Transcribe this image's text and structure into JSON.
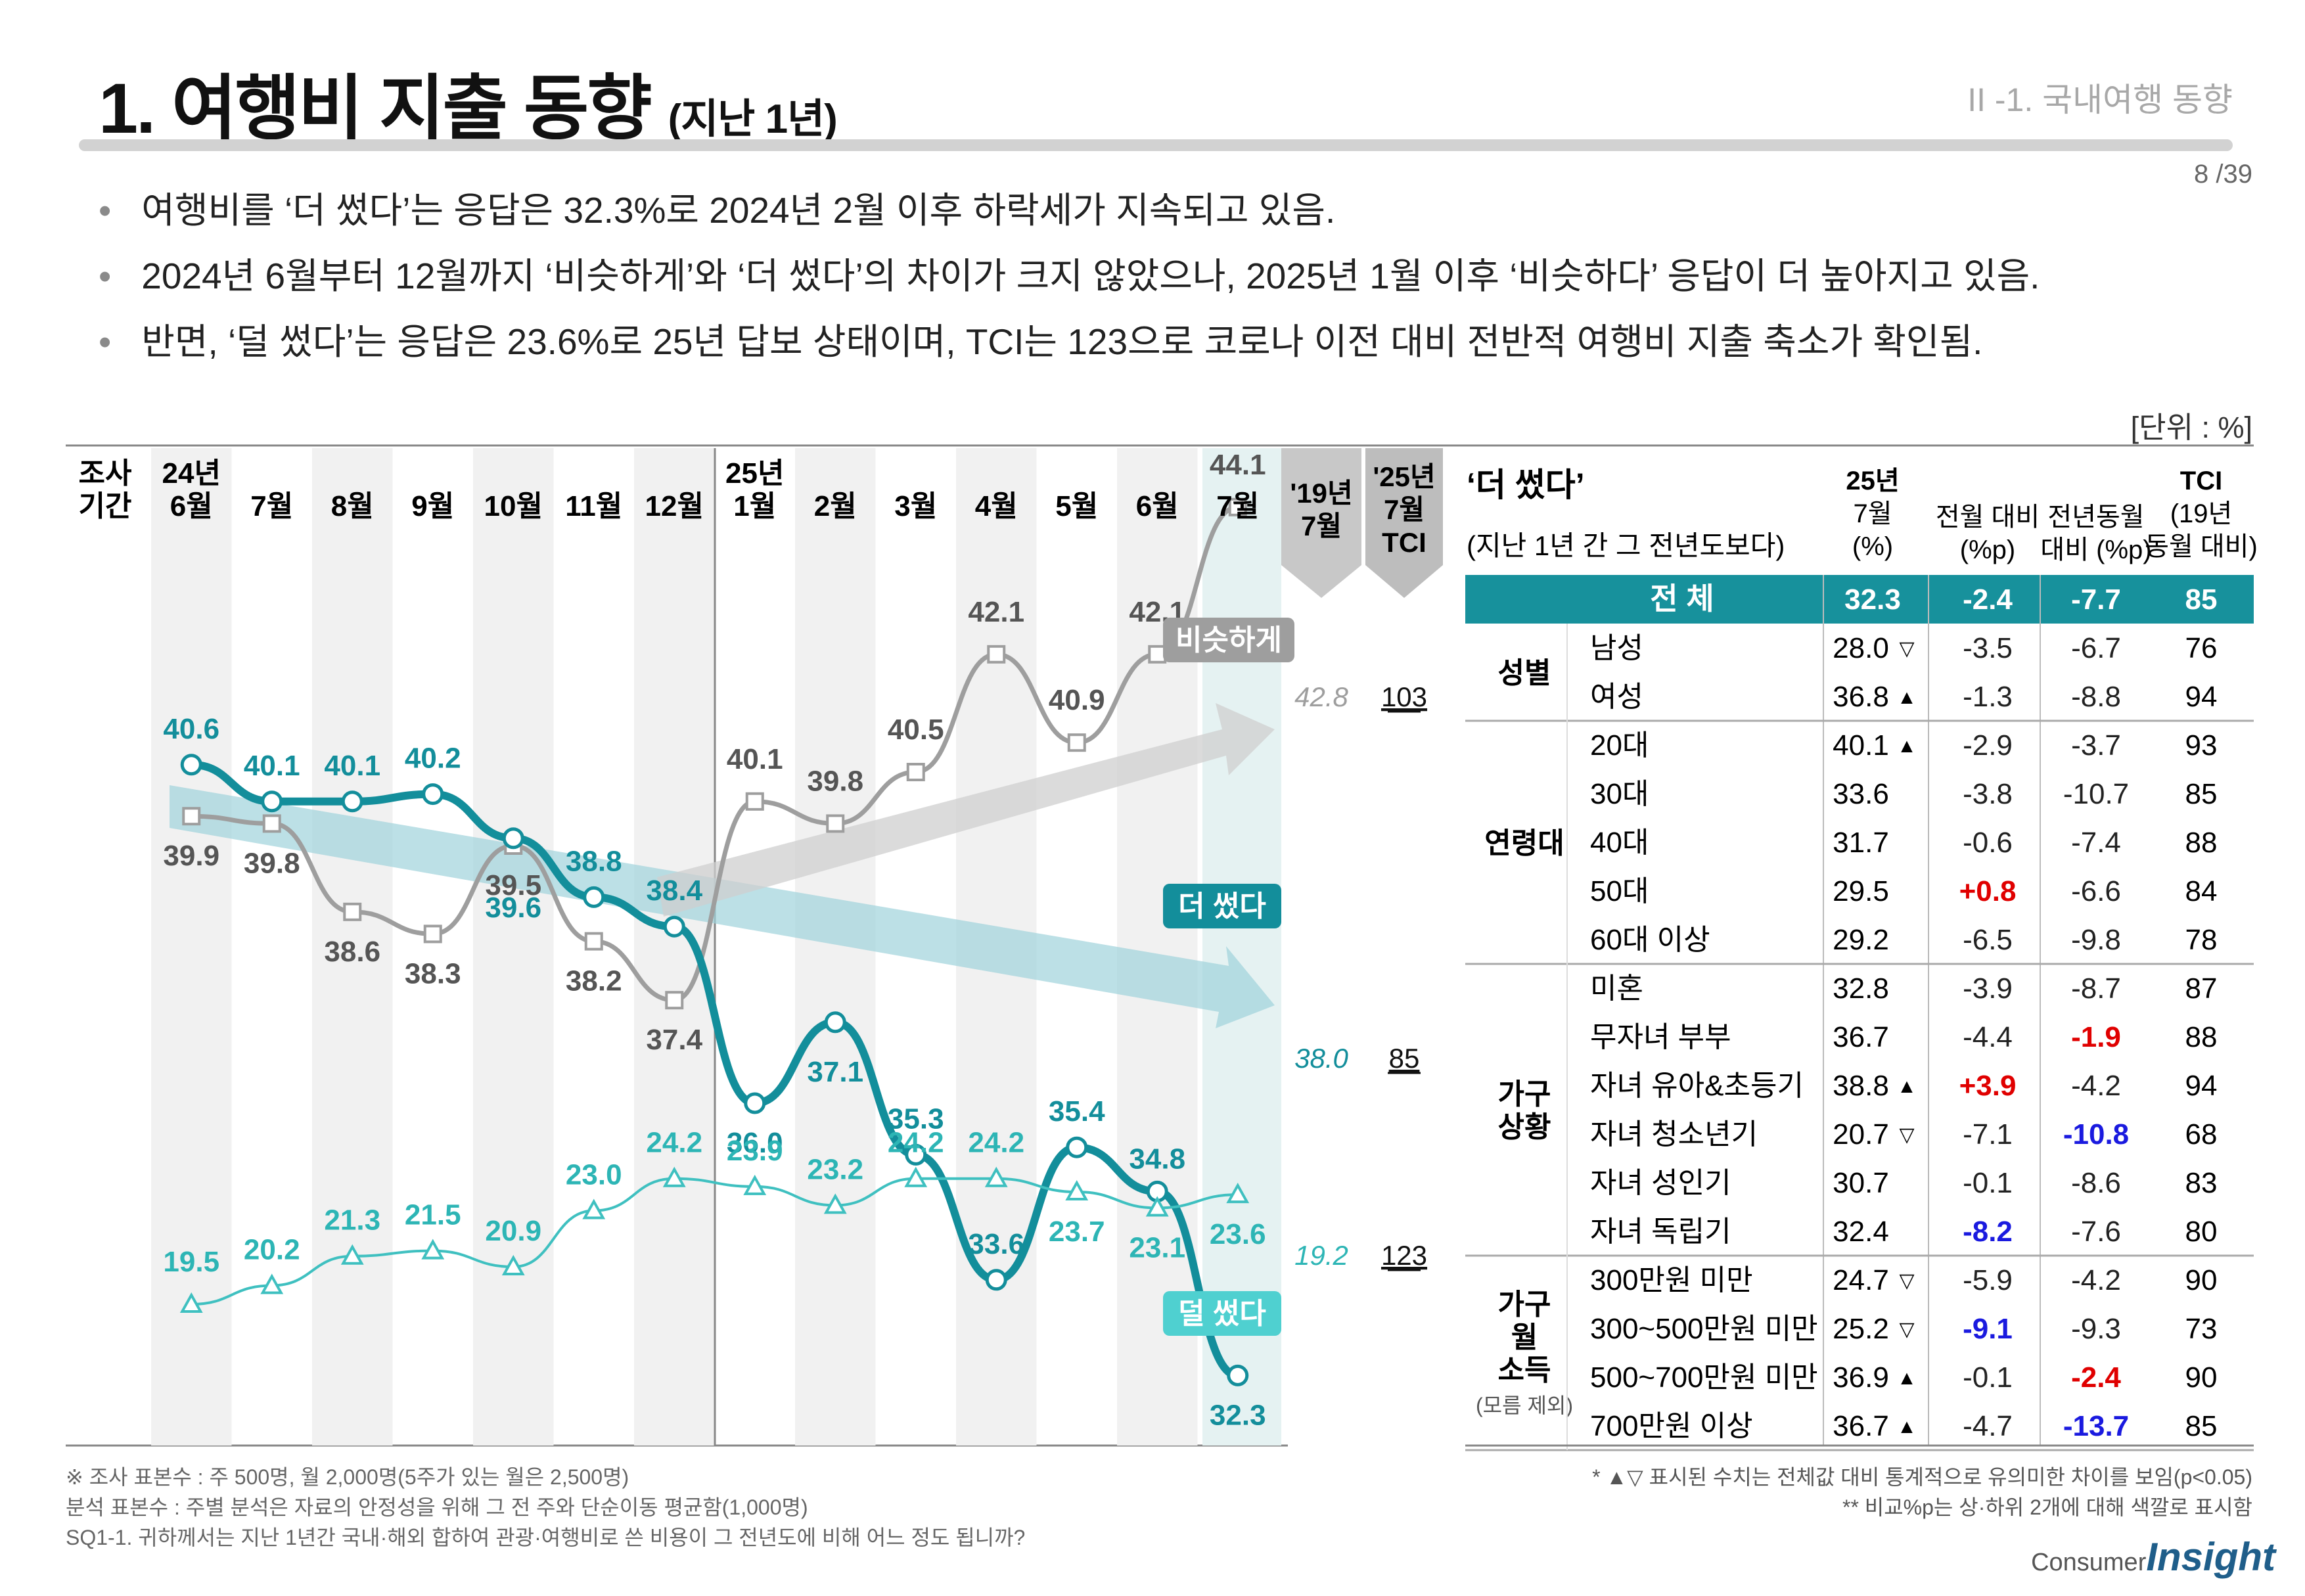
{
  "header": {
    "title": "1. 여행비 지출 동향",
    "title_suffix": "(지난 1년)",
    "section": "II -1. 국내여행 동향",
    "page": "8 /39"
  },
  "bullets": [
    "여행비를 ‘더 썼다’는 응답은 32.3%로 2024년 2월 이후 하락세가 지속되고 있음.",
    "2024년 6월부터 12월까지 ‘비슷하게’와 ‘더 썼다’의 차이가 크지 않았으나, 2025년 1월 이후 ‘비슷하다’ 응답이 더 높아지고 있음.",
    "반면, ‘덜 썼다’는 응답은 23.6%로 25년 답보 상태이며, TCI는 123으로 코로나 이전 대비 전반적 여행비 지출 축소가 확인됨."
  ],
  "unit": "[단위 : %]",
  "chart_data": {
    "type": "line",
    "period_label": "조사 기간",
    "categories": [
      "24년 6월",
      "7월",
      "8월",
      "9월",
      "10월",
      "11월",
      "12월",
      "25년 1월",
      "2월",
      "3월",
      "4월",
      "5월",
      "6월",
      "7월"
    ],
    "series": [
      {
        "name": "비슷하게",
        "values": [
          39.9,
          39.8,
          38.6,
          38.3,
          39.5,
          38.2,
          37.4,
          40.1,
          39.8,
          40.5,
          42.1,
          40.9,
          42.1,
          44.1
        ],
        "color": "#9e9e9e",
        "ref_2019": "42.8",
        "tci": "103"
      },
      {
        "name": "더 썼다",
        "values": [
          40.6,
          40.1,
          40.1,
          40.2,
          39.6,
          38.8,
          38.4,
          36.0,
          37.1,
          35.3,
          33.6,
          35.4,
          34.8,
          32.3
        ],
        "color": "#138e9b",
        "ref_2019": "38.0",
        "tci": "85"
      },
      {
        "name": "덜 썼다",
        "values": [
          19.5,
          20.2,
          21.3,
          21.5,
          20.9,
          23.0,
          24.2,
          23.9,
          23.2,
          24.2,
          24.2,
          23.7,
          23.1,
          23.6
        ],
        "color": "#3fc0c0",
        "ref_2019": "19.2",
        "tci": "123"
      }
    ],
    "extra_columns": [
      "'19년 7월",
      "'25년 7월 TCI"
    ]
  },
  "table": {
    "title": "‘더 썼다’",
    "subtitle": "(지난 1년 간 그 전년도보다)",
    "headers": [
      "25년 7월 (%)",
      "전월 대비 (%p)",
      "전년동월 대비 (%p)",
      "TCI (19년 동월 대비)"
    ],
    "total": {
      "label": "전 체",
      "values": [
        "32.3",
        "-2.4",
        "-7.7",
        "85"
      ]
    },
    "groups": [
      {
        "name": "성별",
        "note": "",
        "rows": [
          {
            "label": "남성",
            "value": "28.0",
            "mark": "▽",
            "mom": "-3.5",
            "mom_color": "",
            "yoy": "-6.7",
            "yoy_color": "",
            "tci": "76"
          },
          {
            "label": "여성",
            "value": "36.8",
            "mark": "▲",
            "mom": "-1.3",
            "mom_color": "",
            "yoy": "-8.8",
            "yoy_color": "",
            "tci": "94"
          }
        ]
      },
      {
        "name": "연령대",
        "note": "",
        "rows": [
          {
            "label": "20대",
            "value": "40.1",
            "mark": "▲",
            "mom": "-2.9",
            "mom_color": "",
            "yoy": "-3.7",
            "yoy_color": "",
            "tci": "93"
          },
          {
            "label": "30대",
            "value": "33.6",
            "mark": "",
            "mom": "-3.8",
            "mom_color": "",
            "yoy": "-10.7",
            "yoy_color": "",
            "tci": "85"
          },
          {
            "label": "40대",
            "value": "31.7",
            "mark": "",
            "mom": "-0.6",
            "mom_color": "",
            "yoy": "-7.4",
            "yoy_color": "",
            "tci": "88"
          },
          {
            "label": "50대",
            "value": "29.5",
            "mark": "",
            "mom": "+0.8",
            "mom_color": "#e00000",
            "yoy": "-6.6",
            "yoy_color": "",
            "tci": "84"
          },
          {
            "label": "60대 이상",
            "value": "29.2",
            "mark": "",
            "mom": "-6.5",
            "mom_color": "",
            "yoy": "-9.8",
            "yoy_color": "",
            "tci": "78"
          }
        ]
      },
      {
        "name": "가구 상황",
        "note": "",
        "rows": [
          {
            "label": "미혼",
            "value": "32.8",
            "mark": "",
            "mom": "-3.9",
            "mom_color": "",
            "yoy": "-8.7",
            "yoy_color": "",
            "tci": "87"
          },
          {
            "label": "무자녀 부부",
            "value": "36.7",
            "mark": "",
            "mom": "-4.4",
            "mom_color": "",
            "yoy": "-1.9",
            "yoy_color": "#e00000",
            "tci": "88"
          },
          {
            "label": "자녀 유아&초등기",
            "value": "38.8",
            "mark": "▲",
            "mom": "+3.9",
            "mom_color": "#e00000",
            "yoy": "-4.2",
            "yoy_color": "",
            "tci": "94"
          },
          {
            "label": "자녀 청소년기",
            "value": "20.7",
            "mark": "▽",
            "mom": "-7.1",
            "mom_color": "",
            "yoy": "-10.8",
            "yoy_color": "#1a1adf",
            "tci": "68"
          },
          {
            "label": "자녀 성인기",
            "value": "30.7",
            "mark": "",
            "mom": "-0.1",
            "mom_color": "",
            "yoy": "-8.6",
            "yoy_color": "",
            "tci": "83"
          },
          {
            "label": "자녀 독립기",
            "value": "32.4",
            "mark": "",
            "mom": "-8.2",
            "mom_color": "#1a1adf",
            "yoy": "-7.6",
            "yoy_color": "",
            "tci": "80"
          }
        ]
      },
      {
        "name": "가구 월 소득",
        "note": "(모름 제외)",
        "rows": [
          {
            "label": "300만원 미만",
            "value": "24.7",
            "mark": "▽",
            "mom": "-5.9",
            "mom_color": "",
            "yoy": "-4.2",
            "yoy_color": "",
            "tci": "90"
          },
          {
            "label": "300~500만원 미만",
            "value": "25.2",
            "mark": "▽",
            "mom": "-9.1",
            "mom_color": "#1a1adf",
            "yoy": "-9.3",
            "yoy_color": "",
            "tci": "73"
          },
          {
            "label": "500~700만원 미만",
            "value": "36.9",
            "mark": "▲",
            "mom": "-0.1",
            "mom_color": "",
            "yoy": "-2.4",
            "yoy_color": "#e00000",
            "tci": "90"
          },
          {
            "label": "700만원 이상",
            "value": "36.7",
            "mark": "▲",
            "mom": "-4.7",
            "mom_color": "",
            "yoy": "-13.7",
            "yoy_color": "#1a1adf",
            "tci": "85"
          }
        ]
      }
    ]
  },
  "footnotes": {
    "left": [
      "※ 조사 표본수 : 주 500명, 월 2,000명(5주가 있는 월은 2,500명)",
      "분석 표본수 : 주별 분석은 자료의 안정성을 위해 그 전 주와 단순이동 평균함(1,000명)",
      "SQ1-1. 귀하께서는 지난 1년간 국내·해외 합하여 관광·여행비로 쓴 비용이 그 전년도에 비해 어느 정도 됩니까?"
    ],
    "right": [
      "* ▲▽ 표시된 수치는 전체값 대비 통계적으로 유의미한 차이를 보임(p<0.05)",
      "** 비교%p는 상·하위 2개에 대해 색깔로 표시함"
    ]
  },
  "logo": {
    "small": "Consumer",
    "big": "Insight"
  }
}
